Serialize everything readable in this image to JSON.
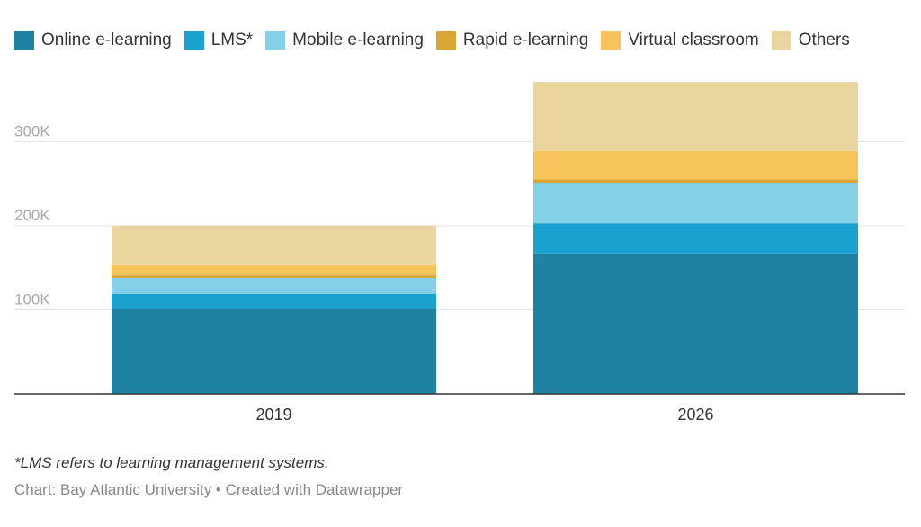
{
  "chart_data": {
    "type": "bar",
    "stacked": true,
    "categories": [
      "2019",
      "2026"
    ],
    "series": [
      {
        "name": "Online e-learning",
        "color": "#1f82a3",
        "values": [
          101,
          167
        ]
      },
      {
        "name": "LMS*",
        "color": "#19a2cf",
        "values": [
          18,
          36
        ]
      },
      {
        "name": "Mobile e-learning",
        "color": "#84d0e6",
        "values": [
          19,
          48
        ]
      },
      {
        "name": "Rapid e-learning",
        "color": "#d9a534",
        "values": [
          3,
          4
        ]
      },
      {
        "name": "Virtual classroom",
        "color": "#f7c45b",
        "values": [
          12,
          34
        ]
      },
      {
        "name": "Others",
        "color": "#ebd59f",
        "values": [
          47,
          82
        ]
      }
    ],
    "unit": "thousand",
    "yticks": [
      {
        "value": 100,
        "label": "100K"
      },
      {
        "value": 200,
        "label": "200K"
      },
      {
        "value": 300,
        "label": "300K"
      }
    ],
    "ylim": [
      0,
      400
    ],
    "grid": true,
    "legend": "top"
  },
  "footer": {
    "note": "*LMS refers to learning management systems.",
    "source": "Chart: Bay Atlantic University • Created with Datawrapper"
  }
}
